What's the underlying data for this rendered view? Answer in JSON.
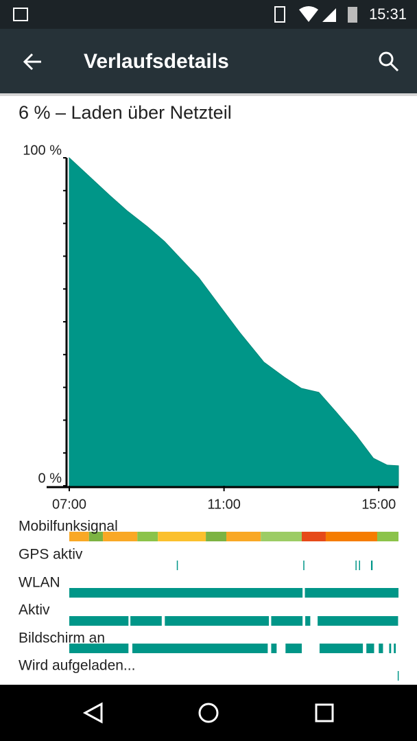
{
  "status_bar": {
    "time": "15:31"
  },
  "toolbar": {
    "title": "Verlaufsdetails"
  },
  "chart_data": {
    "type": "area",
    "title": "6 % – Laden über Netzteil",
    "x": [
      7.0,
      8.05,
      8.49,
      9.02,
      9.46,
      9.9,
      10.35,
      10.88,
      11.41,
      12.03,
      12.56,
      13.0,
      13.45,
      13.89,
      14.42,
      14.86,
      15.22,
      15.51
    ],
    "values": [
      100,
      88.5,
      83.9,
      79,
      74.5,
      69,
      63.4,
      55,
      46.7,
      37.7,
      33.1,
      29.7,
      28.5,
      22.6,
      15.3,
      8.4,
      6.3,
      6.1
    ],
    "color": "#009688",
    "xlim": [
      7,
      15.51
    ],
    "ylim": [
      0,
      100
    ],
    "xticks": [
      {
        "value": 7,
        "label": "07:00"
      },
      {
        "value": 11,
        "label": "11:00"
      },
      {
        "value": 15,
        "label": "15:00"
      }
    ],
    "yticks": [
      {
        "value": 0,
        "label": "0 %"
      },
      {
        "value": 100,
        "label": "100 %"
      }
    ],
    "yminorticks": [
      10,
      20,
      30,
      40,
      50,
      60,
      70,
      80,
      90
    ]
  },
  "activity": [
    {
      "name": "Mobilfunksignal",
      "segments": [
        [
          7.0,
          7.51
        ],
        [
          7.51,
          7.87
        ],
        [
          7.87,
          8.76
        ],
        [
          8.76,
          9.29
        ],
        [
          9.29,
          10.53
        ],
        [
          10.53,
          11.06
        ],
        [
          11.06,
          11.95
        ],
        [
          11.95,
          13.01
        ],
        [
          13.01,
          13.63
        ],
        [
          13.63,
          14.96
        ],
        [
          14.96,
          15.51
        ]
      ],
      "segment_colors": [
        "#f9a825",
        "#7cb342",
        "#f9a825",
        "#8bc34a",
        "#fbc02d",
        "#7cb342",
        "#f9a825",
        "#9ccc65",
        "#e64a19",
        "#f57c00",
        "#8bc34a"
      ]
    },
    {
      "name": "GPS aktiv",
      "color": "#009688",
      "segments": [
        [
          9.78,
          9.8
        ],
        [
          13.05,
          13.07
        ],
        [
          14.4,
          14.42
        ],
        [
          14.49,
          14.51
        ],
        [
          14.8,
          14.84
        ]
      ]
    },
    {
      "name": "WLAN",
      "color": "#009688",
      "segments": [
        [
          7.0,
          13.03
        ],
        [
          13.09,
          15.51
        ]
      ]
    },
    {
      "name": "Aktiv",
      "color": "#009688",
      "segments": [
        [
          7.0,
          8.53
        ],
        [
          8.58,
          9.39
        ],
        [
          9.47,
          12.16
        ],
        [
          12.22,
          13.03
        ],
        [
          13.1,
          13.23
        ],
        [
          13.42,
          15.5
        ]
      ]
    },
    {
      "name": "Bildschirm an",
      "color": "#009688",
      "segments": [
        [
          7.0,
          8.53
        ],
        [
          8.63,
          12.13
        ],
        [
          12.22,
          12.36
        ],
        [
          12.59,
          13.01
        ],
        [
          13.47,
          14.59
        ],
        [
          14.68,
          14.88
        ],
        [
          15.0,
          15.11
        ],
        [
          15.27,
          15.32
        ],
        [
          15.39,
          15.44
        ]
      ]
    },
    {
      "name": "Wird aufgeladen...",
      "color": "#009688",
      "segments": [
        [
          15.49,
          15.51
        ]
      ]
    }
  ]
}
